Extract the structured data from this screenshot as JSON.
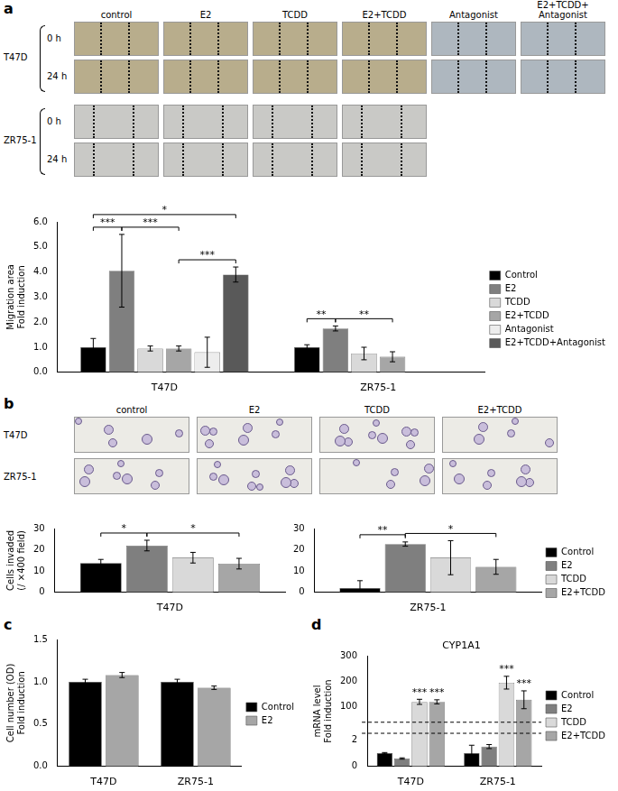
{
  "panels": [
    {
      "label": "a",
      "photo_columns": [
        "control",
        "E2",
        "TCDD",
        "E2+TCDD",
        "Antagonist",
        "E2+TCDD+ Antagonist"
      ],
      "photo_groups": [
        {
          "name": "T47D",
          "rows": [
            "0 h",
            "24 h"
          ],
          "columns": [
            "control",
            "E2",
            "TCDD",
            "E2+TCDD",
            "Antagonist",
            "E2+TCDD+ Antagonist"
          ]
        },
        {
          "name": "ZR75-1",
          "rows": [
            "0 h",
            "24 h"
          ],
          "columns": [
            "control",
            "E2",
            "TCDD",
            "E2+TCDD"
          ]
        }
      ]
    },
    {
      "label": "b",
      "photo_columns": [
        "control",
        "E2",
        "TCDD",
        "E2+TCDD"
      ],
      "photo_rows": [
        "T47D",
        "ZR75-1"
      ]
    },
    {
      "label": "c"
    },
    {
      "label": "d"
    }
  ],
  "chart_data": [
    {
      "panel": "a",
      "type": "bar",
      "y_label": [
        "Migration area",
        "Fold induction"
      ],
      "categories": [
        "T47D",
        "ZR75-1"
      ],
      "ylim": [
        0,
        6
      ],
      "yticks": [
        {
          "value": 0,
          "label": "0.0"
        },
        {
          "value": 1,
          "label": "1.0"
        },
        {
          "value": 2,
          "label": "2.0"
        },
        {
          "value": 3,
          "label": "3.0"
        },
        {
          "value": 4,
          "label": "4.0"
        },
        {
          "value": 5,
          "label": "5.0"
        },
        {
          "value": 6,
          "label": "6.0"
        }
      ],
      "grid": false,
      "legend": "right",
      "series": [
        {
          "name": "Control",
          "color": "#000000",
          "values": [
            1.0,
            1.0
          ],
          "errors": [
            0.35,
            0.1
          ]
        },
        {
          "name": "E2",
          "color": "#7f7f7f",
          "values": [
            4.05,
            1.75
          ],
          "errors": [
            1.45,
            0.1
          ]
        },
        {
          "name": "TCDD",
          "color": "#d9d9d9",
          "values": [
            0.95,
            0.75
          ],
          "errors": [
            0.1,
            0.25
          ]
        },
        {
          "name": "E2+TCDD",
          "color": "#a6a6a6",
          "values": [
            0.95,
            0.62
          ],
          "errors": [
            0.1,
            0.2
          ]
        },
        {
          "name": "Antagonist",
          "color": "#ededed",
          "values": [
            0.8,
            null
          ],
          "errors": [
            0.6,
            null
          ]
        },
        {
          "name": "E2+TCDD+Antagonist",
          "color": "#595959",
          "values": [
            3.9,
            null
          ],
          "errors": [
            0.3,
            null
          ]
        }
      ],
      "annotations": [
        {
          "category": 0,
          "from": 0,
          "to": 1,
          "label": "***"
        },
        {
          "category": 0,
          "from": 1,
          "to": 3,
          "label": "***"
        },
        {
          "category": 0,
          "from": 3,
          "to": 5,
          "label": "***"
        },
        {
          "category": 0,
          "from": 0,
          "to": 5,
          "label": "*"
        },
        {
          "category": 1,
          "from": 0,
          "to": 1,
          "label": "**"
        },
        {
          "category": 1,
          "from": 1,
          "to": 3,
          "label": "**"
        }
      ]
    },
    {
      "panel": "b",
      "type": "bar",
      "y_label": [
        "Cells invaded",
        "(/ ×400 field)"
      ],
      "categories": [
        "T47D"
      ],
      "ylim": [
        0,
        30
      ],
      "yticks": [
        0,
        10,
        20,
        30
      ],
      "grid": false,
      "series": [
        {
          "name": "Control",
          "color": "#000000",
          "values": [
            13.8
          ],
          "errors": [
            1.7
          ]
        },
        {
          "name": "E2",
          "color": "#7f7f7f",
          "values": [
            22
          ],
          "errors": [
            2.5
          ]
        },
        {
          "name": "TCDD",
          "color": "#d9d9d9",
          "values": [
            16.3
          ],
          "errors": [
            2.5
          ]
        },
        {
          "name": "E2+TCDD",
          "color": "#a6a6a6",
          "values": [
            13.5
          ],
          "errors": [
            2.5
          ]
        }
      ],
      "annotations": [
        {
          "category": 0,
          "from": 0,
          "to": 1,
          "label": "*"
        },
        {
          "category": 0,
          "from": 1,
          "to": 3,
          "label": "*"
        }
      ]
    },
    {
      "panel": "b",
      "type": "bar",
      "categories": [
        "ZR75-1"
      ],
      "ylim": [
        0,
        30
      ],
      "yticks": [
        0,
        10,
        20,
        30
      ],
      "grid": false,
      "legend": "right",
      "series": [
        {
          "name": "Control",
          "color": "#000000",
          "values": [
            2
          ],
          "errors": [
            3.5
          ]
        },
        {
          "name": "E2",
          "color": "#7f7f7f",
          "values": [
            22.7
          ],
          "errors": [
            1
          ]
        },
        {
          "name": "TCDD",
          "color": "#d9d9d9",
          "values": [
            16.3
          ],
          "errors": [
            8
          ]
        },
        {
          "name": "E2+TCDD",
          "color": "#a6a6a6",
          "values": [
            12
          ],
          "errors": [
            3.5
          ]
        }
      ],
      "annotations": [
        {
          "category": 0,
          "from": 0,
          "to": 1,
          "label": "**"
        },
        {
          "category": 0,
          "from": 1,
          "to": 3,
          "label": "*"
        }
      ]
    },
    {
      "panel": "c",
      "type": "bar",
      "y_label": [
        "Cell number (OD)",
        "Fold induction"
      ],
      "categories": [
        "T47D",
        "ZR75-1"
      ],
      "ylim": [
        0,
        1.5
      ],
      "yticks": [
        {
          "value": 0,
          "label": "0.0"
        },
        {
          "value": 0.5,
          "label": "0.5"
        },
        {
          "value": 1,
          "label": "1.0"
        },
        {
          "value": 1.5,
          "label": "1.5"
        }
      ],
      "grid": false,
      "legend": "right",
      "series": [
        {
          "name": "Control",
          "color": "#000000",
          "values": [
            1.0,
            1.0
          ],
          "errors": [
            0.03,
            0.03
          ]
        },
        {
          "name": "E2",
          "color": "#a6a6a6",
          "values": [
            1.08,
            0.93
          ],
          "errors": [
            0.03,
            0.02
          ]
        }
      ]
    },
    {
      "panel": "d",
      "type": "bar",
      "title": "CYP1A1",
      "y_label": [
        "mRNA level",
        "Fold induction"
      ],
      "categories": [
        "T47D",
        "ZR75-1"
      ],
      "ylim": [
        0,
        300
      ],
      "yticks": [
        0,
        2,
        100,
        200,
        300
      ],
      "ybreak": [
        2.5,
        40
      ],
      "grid": false,
      "legend": "right",
      "series": [
        {
          "name": "Control",
          "color": "#000000",
          "values": [
            1.0,
            1.0
          ],
          "errors": [
            0.05,
            0.6
          ]
        },
        {
          "name": "E2",
          "color": "#7f7f7f",
          "values": [
            0.6,
            1.5
          ],
          "errors": [
            0.05,
            0.15
          ]
        },
        {
          "name": "TCDD",
          "color": "#d9d9d9",
          "values": [
            120,
            195
          ],
          "errors": [
            10,
            25
          ]
        },
        {
          "name": "E2+TCDD",
          "color": "#a6a6a6",
          "values": [
            120,
            128
          ],
          "errors": [
            8,
            35
          ]
        }
      ],
      "annotations": [
        {
          "category": 0,
          "series": 2,
          "label": "***"
        },
        {
          "category": 0,
          "series": 3,
          "label": "***"
        },
        {
          "category": 1,
          "series": 2,
          "label": "***"
        },
        {
          "category": 1,
          "series": 3,
          "label": "***"
        }
      ]
    }
  ]
}
